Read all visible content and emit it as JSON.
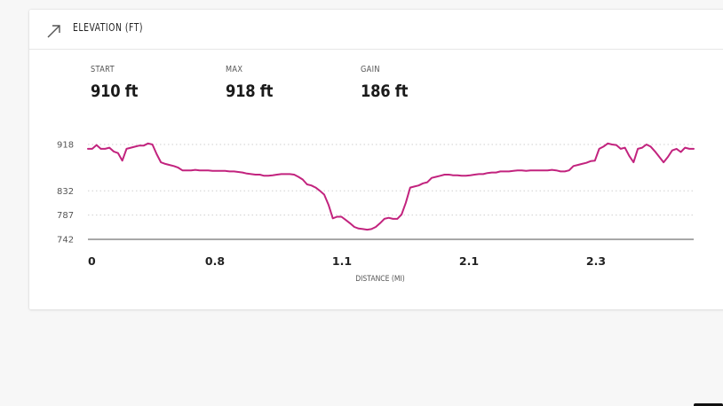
{
  "header": {
    "title": "ELEVATION (FT)",
    "icon": "trend-arrow-icon"
  },
  "stats": [
    {
      "label": "START",
      "value": "910 ft"
    },
    {
      "label": "MAX",
      "value": "918 ft"
    },
    {
      "label": "GAIN",
      "value": "186 ft"
    }
  ],
  "chart_data": {
    "type": "line",
    "xlabel": "DISTANCE (MI)",
    "ylabel": "",
    "x_tick_labels": [
      "0",
      "0.8",
      "1.1",
      "2.1",
      "2.3"
    ],
    "y_ticks": [
      918,
      832,
      787,
      742
    ],
    "ylim": [
      742,
      918
    ],
    "grid": "dotted horizontal",
    "color": "#c2237e",
    "series": [
      {
        "values": [
          910,
          910,
          917,
          910,
          910,
          912,
          905,
          902,
          888,
          910,
          912,
          914,
          916,
          916,
          920,
          918,
          900,
          885,
          882,
          880,
          878,
          875,
          870,
          870,
          870,
          871,
          870,
          870,
          870,
          869,
          869,
          869,
          869,
          868,
          868,
          867,
          866,
          864,
          863,
          862,
          862,
          860,
          860,
          861,
          862,
          863,
          863,
          863,
          862,
          858,
          853,
          844,
          842,
          838,
          832,
          825,
          806,
          781,
          784,
          784,
          778,
          772,
          765,
          762,
          761,
          760,
          761,
          765,
          772,
          780,
          782,
          780,
          780,
          788,
          810,
          838,
          840,
          842,
          846,
          848,
          856,
          858,
          860,
          862,
          862,
          861,
          861,
          860,
          860,
          861,
          862,
          863,
          863,
          865,
          866,
          866,
          868,
          868,
          868,
          869,
          870,
          870,
          869,
          870,
          870,
          870,
          870,
          870,
          871,
          870,
          868,
          868,
          870,
          878,
          880,
          882,
          884,
          887,
          888,
          910,
          914,
          920,
          918,
          917,
          910,
          912,
          897,
          885,
          910,
          912,
          918,
          914,
          905,
          895,
          885,
          895,
          907,
          910,
          904,
          912,
          910,
          910
        ]
      }
    ]
  }
}
